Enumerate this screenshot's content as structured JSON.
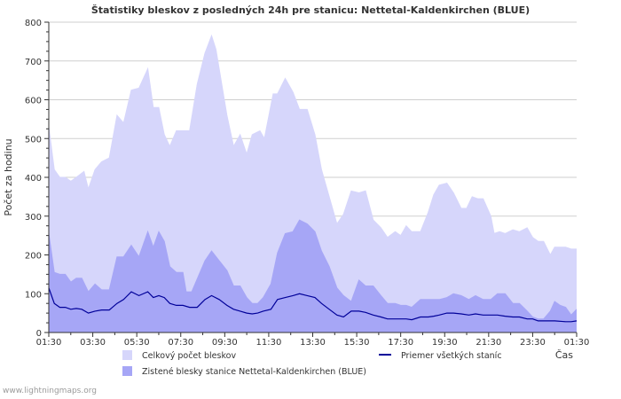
{
  "chart_data": {
    "type": "area",
    "title": "Štatistiky bleskov z posledných 24h pre stanicu: Nettetal-Kaldenkirchen (BLUE)",
    "xlabel": "Čas",
    "ylabel": "Počet za hodinu",
    "ylim": [
      0,
      800
    ],
    "yticks": [
      0,
      100,
      200,
      300,
      400,
      500,
      600,
      700,
      800
    ],
    "grid": true,
    "xlim": [
      0,
      24
    ],
    "x_tick_hours": [
      0,
      2,
      4,
      6,
      8,
      10,
      12,
      14,
      16,
      18,
      20,
      22,
      24
    ],
    "x_tick_labels": [
      "01:30",
      "03:30",
      "05:30",
      "07:30",
      "09:30",
      "11:30",
      "13:30",
      "15:30",
      "17:30",
      "19:30",
      "21:30",
      "23:30",
      "01:30"
    ],
    "series": [
      {
        "name": "Celkový počet bleskov",
        "style": "area",
        "color": "#d6d6fb",
        "points": [
          [
            0.0,
            530
          ],
          [
            0.25,
            420
          ],
          [
            0.5,
            400
          ],
          [
            0.75,
            400
          ],
          [
            1.0,
            390
          ],
          [
            1.25,
            400
          ],
          [
            1.6,
            415
          ],
          [
            1.8,
            370
          ],
          [
            2.1,
            420
          ],
          [
            2.4,
            440
          ],
          [
            2.75,
            450
          ],
          [
            3.1,
            560
          ],
          [
            3.4,
            540
          ],
          [
            3.75,
            625
          ],
          [
            4.1,
            630
          ],
          [
            4.5,
            680
          ],
          [
            4.75,
            580
          ],
          [
            5.0,
            580
          ],
          [
            5.25,
            510
          ],
          [
            5.5,
            480
          ],
          [
            5.8,
            520
          ],
          [
            6.4,
            520
          ],
          [
            6.75,
            640
          ],
          [
            7.1,
            720
          ],
          [
            7.4,
            765
          ],
          [
            7.6,
            730
          ],
          [
            8.1,
            560
          ],
          [
            8.4,
            480
          ],
          [
            8.7,
            510
          ],
          [
            9.0,
            460
          ],
          [
            9.25,
            510
          ],
          [
            9.6,
            520
          ],
          [
            9.8,
            500
          ],
          [
            10.2,
            615
          ],
          [
            10.4,
            615
          ],
          [
            10.75,
            655
          ],
          [
            11.1,
            620
          ],
          [
            11.4,
            575
          ],
          [
            11.75,
            575
          ],
          [
            12.1,
            510
          ],
          [
            12.4,
            420
          ],
          [
            12.75,
            350
          ],
          [
            13.1,
            280
          ],
          [
            13.4,
            305
          ],
          [
            13.75,
            365
          ],
          [
            14.1,
            360
          ],
          [
            14.4,
            365
          ],
          [
            14.75,
            290
          ],
          [
            15.1,
            270
          ],
          [
            15.4,
            245
          ],
          [
            15.75,
            260
          ],
          [
            16.0,
            250
          ],
          [
            16.25,
            275
          ],
          [
            16.5,
            260
          ],
          [
            16.9,
            260
          ],
          [
            17.25,
            310
          ],
          [
            17.5,
            355
          ],
          [
            17.75,
            380
          ],
          [
            18.1,
            385
          ],
          [
            18.4,
            360
          ],
          [
            18.75,
            320
          ],
          [
            19.0,
            320
          ],
          [
            19.25,
            350
          ],
          [
            19.5,
            345
          ],
          [
            19.75,
            345
          ],
          [
            20.1,
            300
          ],
          [
            20.25,
            255
          ],
          [
            20.5,
            260
          ],
          [
            20.75,
            255
          ],
          [
            21.1,
            265
          ],
          [
            21.4,
            260
          ],
          [
            21.75,
            270
          ],
          [
            22.0,
            245
          ],
          [
            22.25,
            235
          ],
          [
            22.5,
            235
          ],
          [
            22.8,
            200
          ],
          [
            23.0,
            220
          ],
          [
            23.5,
            220
          ],
          [
            23.75,
            215
          ],
          [
            24.0,
            215
          ]
        ]
      },
      {
        "name": "Zistené blesky stanice Nettetal-Kaldenkirchen (BLUE)",
        "style": "area",
        "color": "#a6a6f6",
        "points": [
          [
            0.0,
            255
          ],
          [
            0.25,
            155
          ],
          [
            0.5,
            150
          ],
          [
            0.75,
            150
          ],
          [
            1.0,
            130
          ],
          [
            1.25,
            140
          ],
          [
            1.5,
            140
          ],
          [
            1.8,
            105
          ],
          [
            2.1,
            125
          ],
          [
            2.4,
            110
          ],
          [
            2.75,
            110
          ],
          [
            3.1,
            195
          ],
          [
            3.4,
            195
          ],
          [
            3.75,
            225
          ],
          [
            4.1,
            195
          ],
          [
            4.5,
            260
          ],
          [
            4.75,
            220
          ],
          [
            5.0,
            260
          ],
          [
            5.25,
            235
          ],
          [
            5.5,
            170
          ],
          [
            5.8,
            155
          ],
          [
            6.1,
            155
          ],
          [
            6.25,
            105
          ],
          [
            6.5,
            105
          ],
          [
            7.1,
            185
          ],
          [
            7.4,
            210
          ],
          [
            7.75,
            185
          ],
          [
            8.1,
            160
          ],
          [
            8.4,
            120
          ],
          [
            8.7,
            120
          ],
          [
            9.0,
            90
          ],
          [
            9.25,
            75
          ],
          [
            9.5,
            75
          ],
          [
            9.75,
            90
          ],
          [
            10.1,
            125
          ],
          [
            10.4,
            205
          ],
          [
            10.75,
            255
          ],
          [
            11.1,
            260
          ],
          [
            11.4,
            290
          ],
          [
            11.75,
            280
          ],
          [
            12.1,
            260
          ],
          [
            12.4,
            210
          ],
          [
            12.75,
            170
          ],
          [
            13.1,
            115
          ],
          [
            13.4,
            95
          ],
          [
            13.75,
            80
          ],
          [
            14.1,
            135
          ],
          [
            14.4,
            120
          ],
          [
            14.75,
            120
          ],
          [
            15.1,
            95
          ],
          [
            15.4,
            75
          ],
          [
            15.75,
            75
          ],
          [
            16.0,
            70
          ],
          [
            16.25,
            70
          ],
          [
            16.5,
            65
          ],
          [
            16.9,
            85
          ],
          [
            17.25,
            85
          ],
          [
            17.5,
            85
          ],
          [
            17.75,
            85
          ],
          [
            18.1,
            90
          ],
          [
            18.4,
            100
          ],
          [
            18.75,
            95
          ],
          [
            19.1,
            85
          ],
          [
            19.4,
            95
          ],
          [
            19.75,
            85
          ],
          [
            20.1,
            85
          ],
          [
            20.4,
            100
          ],
          [
            20.75,
            100
          ],
          [
            21.1,
            75
          ],
          [
            21.4,
            75
          ],
          [
            21.75,
            55
          ],
          [
            22.0,
            40
          ],
          [
            22.25,
            35
          ],
          [
            22.5,
            35
          ],
          [
            22.8,
            55
          ],
          [
            23.0,
            80
          ],
          [
            23.25,
            70
          ],
          [
            23.5,
            65
          ],
          [
            23.75,
            45
          ],
          [
            24.0,
            60
          ]
        ]
      },
      {
        "name": "Priemer všetkých staníc",
        "style": "line",
        "color": "#000099",
        "points": [
          [
            0.0,
            115
          ],
          [
            0.25,
            75
          ],
          [
            0.5,
            65
          ],
          [
            0.75,
            65
          ],
          [
            1.0,
            60
          ],
          [
            1.25,
            62
          ],
          [
            1.5,
            60
          ],
          [
            1.8,
            50
          ],
          [
            2.1,
            55
          ],
          [
            2.4,
            58
          ],
          [
            2.75,
            58
          ],
          [
            3.1,
            75
          ],
          [
            3.4,
            85
          ],
          [
            3.75,
            105
          ],
          [
            4.1,
            95
          ],
          [
            4.5,
            105
          ],
          [
            4.75,
            90
          ],
          [
            5.0,
            95
          ],
          [
            5.25,
            90
          ],
          [
            5.5,
            75
          ],
          [
            5.8,
            70
          ],
          [
            6.1,
            70
          ],
          [
            6.4,
            65
          ],
          [
            6.75,
            65
          ],
          [
            7.1,
            85
          ],
          [
            7.4,
            95
          ],
          [
            7.75,
            85
          ],
          [
            8.1,
            70
          ],
          [
            8.4,
            60
          ],
          [
            8.7,
            55
          ],
          [
            9.0,
            50
          ],
          [
            9.25,
            48
          ],
          [
            9.5,
            50
          ],
          [
            9.75,
            55
          ],
          [
            10.1,
            60
          ],
          [
            10.4,
            85
          ],
          [
            10.75,
            90
          ],
          [
            11.1,
            95
          ],
          [
            11.4,
            100
          ],
          [
            11.75,
            95
          ],
          [
            12.1,
            90
          ],
          [
            12.4,
            75
          ],
          [
            12.75,
            60
          ],
          [
            13.1,
            45
          ],
          [
            13.4,
            40
          ],
          [
            13.75,
            55
          ],
          [
            14.1,
            55
          ],
          [
            14.4,
            52
          ],
          [
            14.75,
            45
          ],
          [
            15.1,
            40
          ],
          [
            15.4,
            35
          ],
          [
            15.75,
            35
          ],
          [
            16.0,
            35
          ],
          [
            16.25,
            35
          ],
          [
            16.5,
            33
          ],
          [
            16.9,
            40
          ],
          [
            17.25,
            40
          ],
          [
            17.5,
            42
          ],
          [
            17.75,
            45
          ],
          [
            18.1,
            50
          ],
          [
            18.4,
            50
          ],
          [
            18.75,
            48
          ],
          [
            19.1,
            45
          ],
          [
            19.4,
            48
          ],
          [
            19.75,
            45
          ],
          [
            20.1,
            45
          ],
          [
            20.4,
            45
          ],
          [
            20.75,
            42
          ],
          [
            21.1,
            40
          ],
          [
            21.4,
            40
          ],
          [
            21.75,
            35
          ],
          [
            22.0,
            35
          ],
          [
            22.25,
            30
          ],
          [
            22.5,
            30
          ],
          [
            22.8,
            30
          ],
          [
            23.0,
            30
          ],
          [
            23.5,
            28
          ],
          [
            23.75,
            28
          ],
          [
            24.0,
            30
          ]
        ]
      }
    ],
    "legend": [
      {
        "label": "Celkový počet bleskov",
        "kind": "box",
        "color": "#d6d6fb"
      },
      {
        "label": "Zistené blesky stanice Nettetal-Kaldenkirchen (BLUE)",
        "kind": "box",
        "color": "#a6a6f6"
      },
      {
        "label": "Priemer všetkých staníc",
        "kind": "line",
        "color": "#000099"
      }
    ]
  },
  "footer_text": "www.lightningmaps.org"
}
